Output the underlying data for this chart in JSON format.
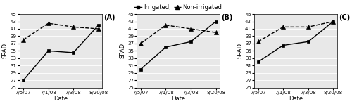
{
  "dates": [
    "7/5/07",
    "7/1/08",
    "7/3/08",
    "8/20/08"
  ],
  "panels": [
    {
      "label": "(A)",
      "irrigated": [
        27,
        35,
        34.5,
        42
      ],
      "non_irrigated": [
        38,
        42.5,
        41.5,
        41
      ]
    },
    {
      "label": "(B)",
      "irrigated": [
        30,
        36,
        37.5,
        43
      ],
      "non_irrigated": [
        37,
        42,
        41,
        40
      ]
    },
    {
      "label": "(C)",
      "irrigated": [
        32,
        36.5,
        37.5,
        43
      ],
      "non_irrigated": [
        37.5,
        41.5,
        41.5,
        43
      ]
    }
  ],
  "ylim": [
    25,
    45
  ],
  "yticks": [
    25,
    27,
    29,
    31,
    33,
    35,
    37,
    39,
    41,
    43,
    45
  ],
  "ylabel": "SPAD",
  "xlabel": "Date",
  "legend_labels": [
    "Irrigated,",
    "Non-irrigated"
  ],
  "bg_color": "#e8e8e8",
  "line_color": "#000000",
  "panel_label_fontsize": 7,
  "axis_label_fontsize": 6,
  "tick_fontsize": 5,
  "legend_fontsize": 6,
  "marker_size_sq": 3.5,
  "marker_size_tri": 4.5,
  "line_width": 1.0
}
